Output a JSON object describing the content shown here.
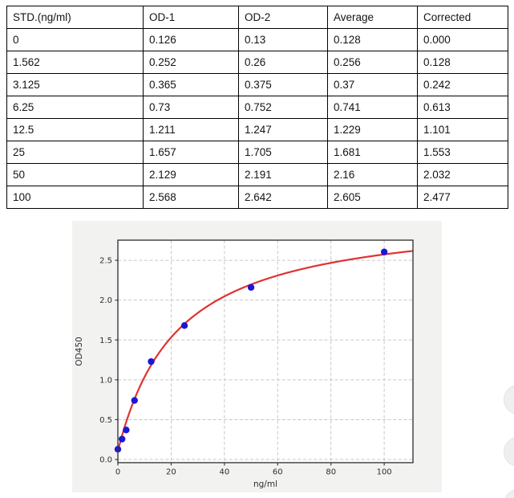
{
  "table": {
    "columns": [
      "STD.(ng/ml)",
      "OD-1",
      "OD-2",
      "Average",
      "Corrected"
    ],
    "rows": [
      [
        "0",
        "0.126",
        "0.13",
        "0.128",
        "0.000"
      ],
      [
        "1.562",
        "0.252",
        "0.26",
        "0.256",
        "0.128"
      ],
      [
        "3.125",
        "0.365",
        "0.375",
        "0.37",
        "0.242"
      ],
      [
        "6.25",
        "0.73",
        "0.752",
        "0.741",
        "0.613"
      ],
      [
        "12.5",
        "1.211",
        "1.247",
        "1.229",
        "1.101"
      ],
      [
        "25",
        "1.657",
        "1.705",
        "1.681",
        "1.553"
      ],
      [
        "50",
        "2.129",
        "2.191",
        "2.16",
        "2.032"
      ],
      [
        "100",
        "2.568",
        "2.642",
        "2.605",
        "2.477"
      ]
    ]
  },
  "chart_data": {
    "type": "scatter",
    "title": "",
    "xlabel": "ng/ml",
    "ylabel": "OD450",
    "x": [
      0,
      1.562,
      3.125,
      6.25,
      12.5,
      25,
      50,
      100
    ],
    "y": [
      0.128,
      0.256,
      0.37,
      0.741,
      1.229,
      1.681,
      2.16,
      2.605
    ],
    "fit": {
      "type": "4PL",
      "a": 0.11,
      "d": 3.1,
      "c": 22,
      "b": 1.02
    },
    "x_tick_values": [
      0,
      20,
      40,
      60,
      80,
      100
    ],
    "x_tick_labels": [
      "0",
      "20",
      "40",
      "60",
      "80",
      "100"
    ],
    "y_tick_values": [
      0,
      0.5,
      1.0,
      1.5,
      2.0,
      2.5
    ],
    "y_tick_labels": [
      "0.0",
      "0.5",
      "1.0",
      "1.5",
      "2.0",
      "2.5"
    ],
    "xlim": [
      0,
      110.8
    ],
    "ylim": [
      -0.04,
      2.753
    ],
    "grid": true,
    "grid_style": "dashed",
    "legend": false,
    "colors": {
      "point": "#1a17d6",
      "curve": "#df3232",
      "figure_bg": "#f2f2f1",
      "plot_bg": "#ffffff",
      "grid": "#c7c7c7",
      "spine": "#3a3a3a",
      "tick_text": "#2e2e2e"
    }
  },
  "floating_buttons": [
    {
      "name": "partial-floating-button-1"
    },
    {
      "name": "partial-floating-button-2"
    },
    {
      "name": "partial-floating-button-3"
    }
  ]
}
